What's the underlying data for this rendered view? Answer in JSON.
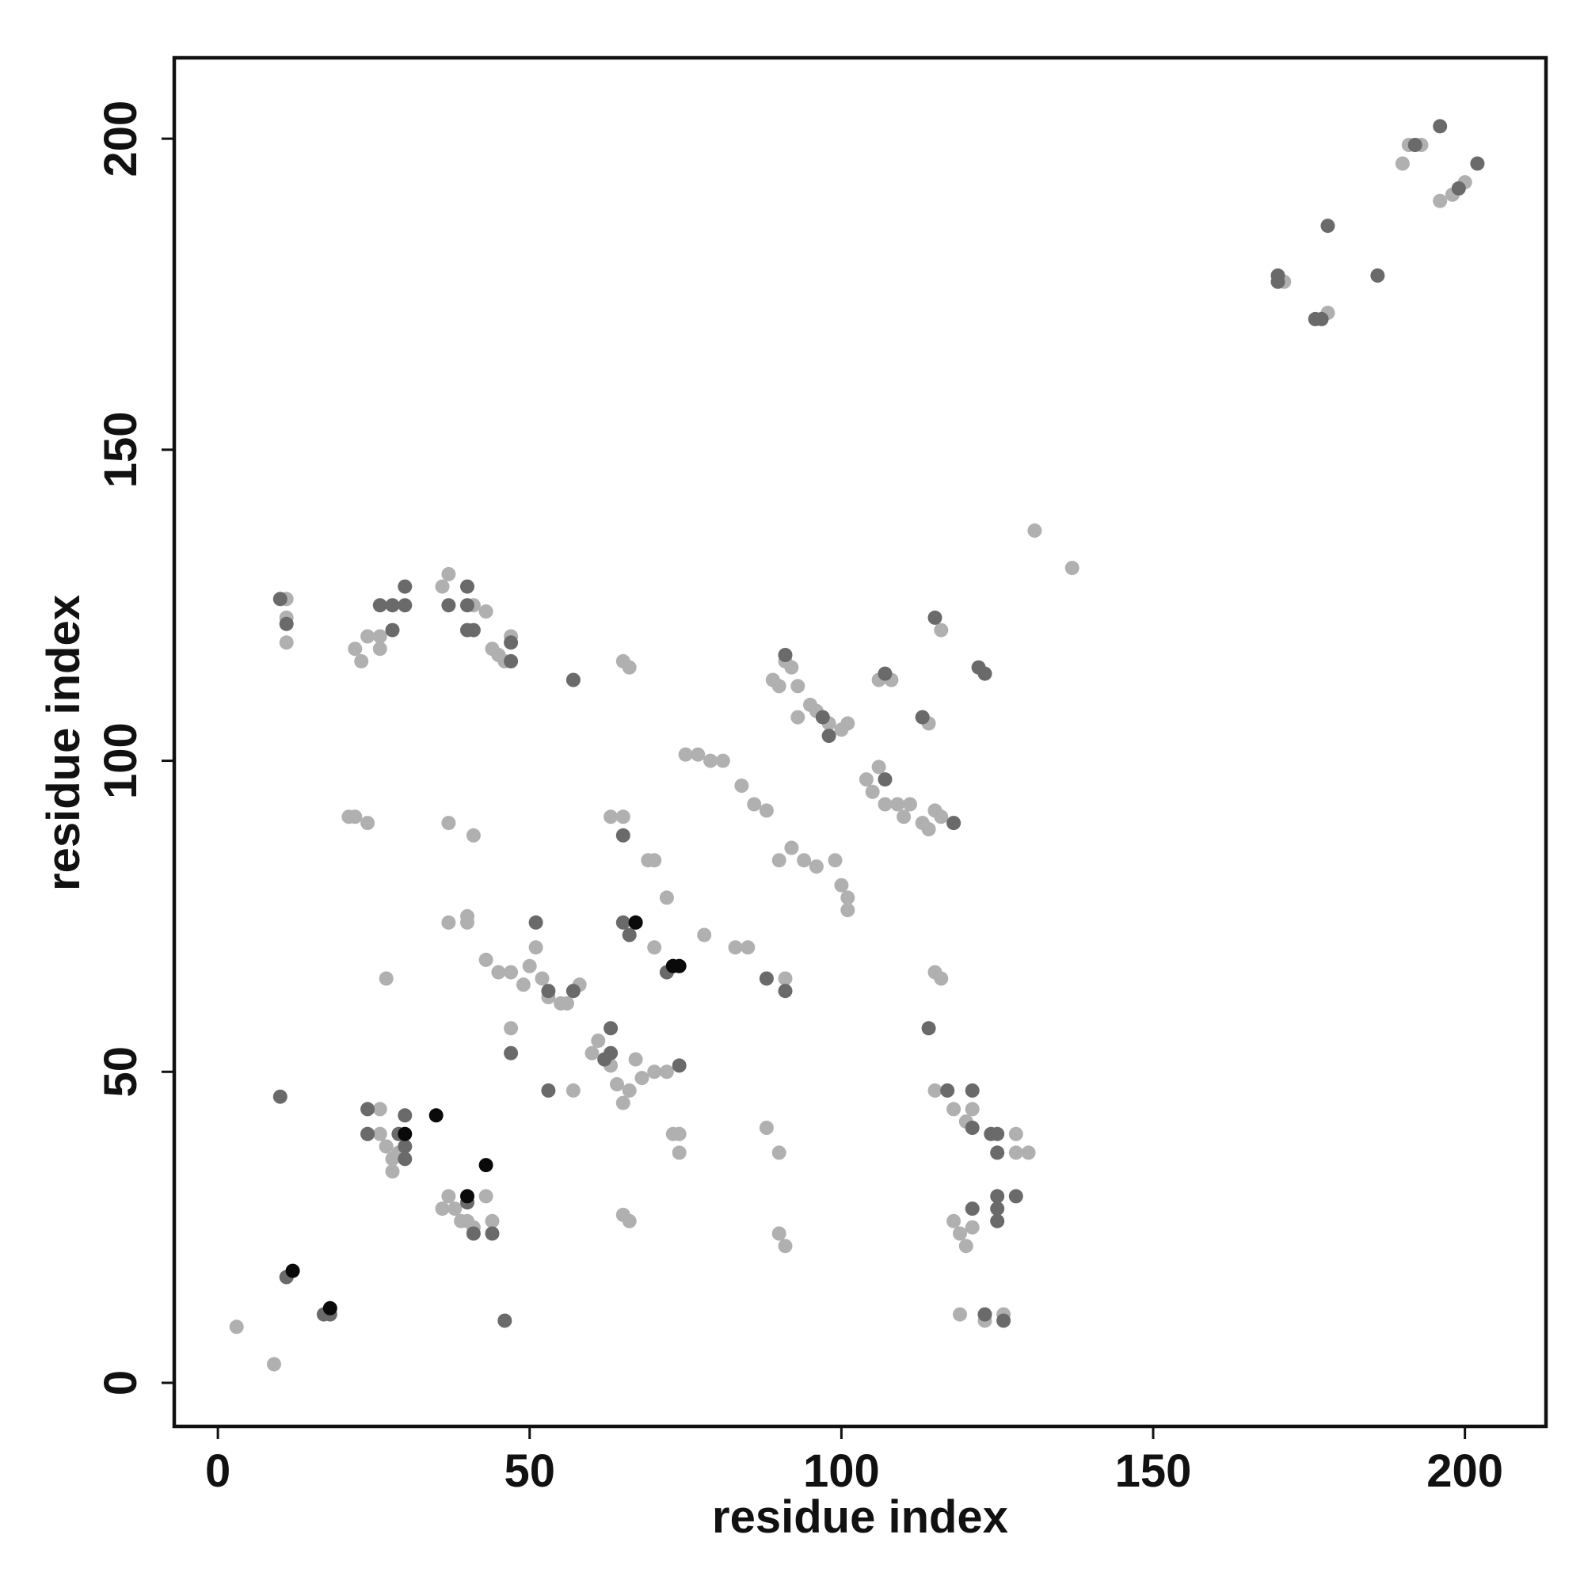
{
  "chart_data": {
    "type": "scatter",
    "title": "",
    "xlabel": "residue index",
    "ylabel": "residue index",
    "xlim": [
      -7,
      213
    ],
    "ylim": [
      -7,
      213
    ],
    "xticks": [
      0,
      50,
      100,
      150,
      200
    ],
    "yticks": [
      0,
      50,
      100,
      150,
      200
    ],
    "grid": false,
    "legend": "none",
    "colors": {
      "light": "#b0b0b0",
      "mid": "#6a6a6a",
      "dark": "#0a0a0a"
    },
    "series": [
      {
        "shade": "light",
        "points": [
          [
            3,
            9
          ],
          [
            9,
            3
          ],
          [
            11,
            126
          ],
          [
            11,
            123
          ],
          [
            11,
            119
          ],
          [
            22,
            118
          ],
          [
            23,
            116
          ],
          [
            24,
            120
          ],
          [
            26,
            118
          ],
          [
            26,
            120
          ],
          [
            21,
            91
          ],
          [
            22,
            91
          ],
          [
            24,
            90
          ],
          [
            27,
            65
          ],
          [
            26,
            44
          ],
          [
            24,
            40
          ],
          [
            26,
            40
          ],
          [
            27,
            38
          ],
          [
            28,
            36
          ],
          [
            29,
            37
          ],
          [
            28,
            34
          ],
          [
            36,
            28
          ],
          [
            37,
            30
          ],
          [
            38,
            28
          ],
          [
            39,
            26
          ],
          [
            40,
            26
          ],
          [
            41,
            25
          ],
          [
            43,
            30
          ],
          [
            44,
            26
          ],
          [
            37,
            130
          ],
          [
            36,
            128
          ],
          [
            41,
            125
          ],
          [
            43,
            124
          ],
          [
            44,
            118
          ],
          [
            45,
            117
          ],
          [
            46,
            116
          ],
          [
            47,
            120
          ],
          [
            37,
            90
          ],
          [
            41,
            88
          ],
          [
            37,
            74
          ],
          [
            40,
            75
          ],
          [
            40,
            74
          ],
          [
            43,
            68
          ],
          [
            45,
            66
          ],
          [
            47,
            66
          ],
          [
            49,
            64
          ],
          [
            50,
            67
          ],
          [
            51,
            70
          ],
          [
            52,
            65
          ],
          [
            53,
            62
          ],
          [
            55,
            61
          ],
          [
            56,
            61
          ],
          [
            58,
            64
          ],
          [
            47,
            57
          ],
          [
            57,
            47
          ],
          [
            60,
            53
          ],
          [
            61,
            55
          ],
          [
            63,
            51
          ],
          [
            64,
            48
          ],
          [
            65,
            45
          ],
          [
            66,
            47
          ],
          [
            67,
            52
          ],
          [
            68,
            49
          ],
          [
            70,
            50
          ],
          [
            72,
            50
          ],
          [
            73,
            40
          ],
          [
            74,
            40
          ],
          [
            74,
            37
          ],
          [
            65,
            116
          ],
          [
            66,
            115
          ],
          [
            63,
            91
          ],
          [
            65,
            91
          ],
          [
            65,
            27
          ],
          [
            66,
            26
          ],
          [
            69,
            84
          ],
          [
            70,
            84
          ],
          [
            72,
            78
          ],
          [
            70,
            70
          ],
          [
            78,
            72
          ],
          [
            75,
            101
          ],
          [
            77,
            101
          ],
          [
            79,
            100
          ],
          [
            81,
            100
          ],
          [
            84,
            96
          ],
          [
            86,
            93
          ],
          [
            88,
            92
          ],
          [
            89,
            113
          ],
          [
            90,
            112
          ],
          [
            91,
            116
          ],
          [
            92,
            115
          ],
          [
            93,
            112
          ],
          [
            93,
            107
          ],
          [
            95,
            109
          ],
          [
            96,
            108
          ],
          [
            98,
            106
          ],
          [
            100,
            105
          ],
          [
            101,
            106
          ],
          [
            90,
            84
          ],
          [
            92,
            86
          ],
          [
            94,
            84
          ],
          [
            96,
            83
          ],
          [
            99,
            84
          ],
          [
            100,
            80
          ],
          [
            101,
            78
          ],
          [
            101,
            76
          ],
          [
            83,
            70
          ],
          [
            85,
            70
          ],
          [
            88,
            41
          ],
          [
            90,
            37
          ],
          [
            90,
            24
          ],
          [
            91,
            22
          ],
          [
            91,
            65
          ],
          [
            104,
            97
          ],
          [
            105,
            95
          ],
          [
            106,
            99
          ],
          [
            107,
            93
          ],
          [
            109,
            93
          ],
          [
            106,
            113
          ],
          [
            108,
            113
          ],
          [
            110,
            91
          ],
          [
            111,
            93
          ],
          [
            113,
            90
          ],
          [
            114,
            89
          ],
          [
            115,
            92
          ],
          [
            116,
            91
          ],
          [
            118,
            90
          ],
          [
            113,
            107
          ],
          [
            114,
            106
          ],
          [
            116,
            121
          ],
          [
            115,
            66
          ],
          [
            116,
            65
          ],
          [
            115,
            47
          ],
          [
            118,
            44
          ],
          [
            120,
            42
          ],
          [
            121,
            44
          ],
          [
            119,
            24
          ],
          [
            120,
            22
          ],
          [
            121,
            25
          ],
          [
            118,
            26
          ],
          [
            119,
            11
          ],
          [
            123,
            10
          ],
          [
            126,
            11
          ],
          [
            128,
            37
          ],
          [
            130,
            37
          ],
          [
            128,
            40
          ],
          [
            131,
            137
          ],
          [
            137,
            131
          ],
          [
            171,
            177
          ],
          [
            178,
            172
          ],
          [
            190,
            196
          ],
          [
            191,
            199
          ],
          [
            193,
            199
          ],
          [
            196,
            190
          ],
          [
            198,
            191
          ],
          [
            200,
            193
          ]
        ]
      },
      {
        "shade": "mid",
        "points": [
          [
            10,
            126
          ],
          [
            11,
            122
          ],
          [
            10,
            46
          ],
          [
            11,
            17
          ],
          [
            17,
            11
          ],
          [
            18,
            11
          ],
          [
            24,
            44
          ],
          [
            24,
            40
          ],
          [
            29,
            40
          ],
          [
            30,
            43
          ],
          [
            30,
            38
          ],
          [
            30,
            36
          ],
          [
            26,
            125
          ],
          [
            28,
            125
          ],
          [
            28,
            121
          ],
          [
            30,
            125
          ],
          [
            30,
            128
          ],
          [
            40,
            128
          ],
          [
            37,
            125
          ],
          [
            40,
            125
          ],
          [
            40,
            121
          ],
          [
            41,
            121
          ],
          [
            47,
            116
          ],
          [
            47,
            119
          ],
          [
            40,
            29
          ],
          [
            41,
            24
          ],
          [
            44,
            24
          ],
          [
            46,
            10
          ],
          [
            47,
            53
          ],
          [
            51,
            74
          ],
          [
            53,
            63
          ],
          [
            53,
            47
          ],
          [
            57,
            113
          ],
          [
            57,
            63
          ],
          [
            63,
            57
          ],
          [
            62,
            52
          ],
          [
            63,
            53
          ],
          [
            65,
            88
          ],
          [
            65,
            74
          ],
          [
            66,
            72
          ],
          [
            67,
            74
          ],
          [
            72,
            66
          ],
          [
            73,
            67
          ],
          [
            74,
            51
          ],
          [
            88,
            65
          ],
          [
            91,
            63
          ],
          [
            91,
            117
          ],
          [
            97,
            107
          ],
          [
            98,
            104
          ],
          [
            107,
            114
          ],
          [
            107,
            97
          ],
          [
            113,
            107
          ],
          [
            114,
            57
          ],
          [
            115,
            123
          ],
          [
            117,
            47
          ],
          [
            118,
            90
          ],
          [
            121,
            47
          ],
          [
            121,
            41
          ],
          [
            121,
            28
          ],
          [
            122,
            115
          ],
          [
            123,
            114
          ],
          [
            123,
            11
          ],
          [
            124,
            40
          ],
          [
            125,
            40
          ],
          [
            125,
            37
          ],
          [
            125,
            30
          ],
          [
            125,
            28
          ],
          [
            125,
            26
          ],
          [
            126,
            10
          ],
          [
            128,
            30
          ],
          [
            170,
            178
          ],
          [
            170,
            177
          ],
          [
            176,
            171
          ],
          [
            177,
            171
          ],
          [
            178,
            186
          ],
          [
            186,
            178
          ],
          [
            192,
            199
          ],
          [
            196,
            202
          ],
          [
            199,
            192
          ],
          [
            202,
            196
          ]
        ]
      },
      {
        "shade": "dark",
        "points": [
          [
            12,
            18
          ],
          [
            18,
            12
          ],
          [
            30,
            40
          ],
          [
            35,
            43
          ],
          [
            40,
            30
          ],
          [
            43,
            35
          ],
          [
            67,
            74
          ],
          [
            73,
            67
          ],
          [
            74,
            67
          ]
        ]
      }
    ]
  }
}
